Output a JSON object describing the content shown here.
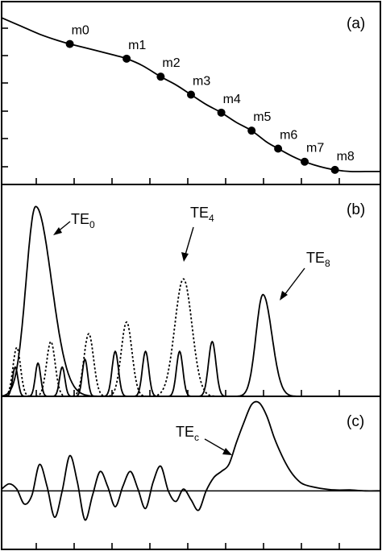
{
  "chart_data": [
    {
      "panel": "a",
      "type": "line",
      "panel_label": "(a)",
      "marker_labels": [
        "m0",
        "m1",
        "m2",
        "m3",
        "m4",
        "m5",
        "m6",
        "m7",
        "m8"
      ],
      "marker_x": [
        0.9,
        1.65,
        2.1,
        2.5,
        2.9,
        3.3,
        3.65,
        4.0,
        4.4
      ],
      "xlim": [
        0,
        5
      ],
      "ylim": [
        0,
        1
      ],
      "x": [
        0,
        0.25,
        0.5,
        0.75,
        0.9,
        1.25,
        1.5,
        1.65,
        1.85,
        2.1,
        2.3,
        2.5,
        2.7,
        2.9,
        3.1,
        3.3,
        3.5,
        3.65,
        3.85,
        4.0,
        4.2,
        4.4,
        4.6,
        4.8,
        5.0
      ],
      "y": [
        0.97,
        0.92,
        0.87,
        0.83,
        0.81,
        0.77,
        0.74,
        0.72,
        0.68,
        0.61,
        0.56,
        0.5,
        0.44,
        0.39,
        0.33,
        0.28,
        0.21,
        0.17,
        0.12,
        0.09,
        0.06,
        0.04,
        0.03,
        0.03,
        0.03
      ],
      "grid": false
    },
    {
      "panel": "b",
      "type": "line",
      "panel_label": "(b)",
      "xlim": [
        0,
        5
      ],
      "ylim": [
        0,
        1
      ],
      "series": [
        {
          "name": "TE0",
          "label_main": "TE",
          "label_sub": "0",
          "style": "solid",
          "peaks": [
            {
              "center": 0.45,
              "height": 0.97,
              "width": 0.18,
              "skew": 0.32
            }
          ]
        },
        {
          "name": "TE4",
          "label_main": "TE",
          "label_sub": "4",
          "style": "dotted",
          "peaks": [
            {
              "center": 0.2,
              "height": 0.25,
              "width": 0.07,
              "skew": 0
            },
            {
              "center": 0.65,
              "height": 0.28,
              "width": 0.08,
              "skew": 0
            },
            {
              "center": 1.15,
              "height": 0.32,
              "width": 0.09,
              "skew": 0
            },
            {
              "center": 1.65,
              "height": 0.38,
              "width": 0.1,
              "skew": 0
            },
            {
              "center": 2.4,
              "height": 0.6,
              "width": 0.16,
              "skew": 0
            }
          ]
        },
        {
          "name": "TE8",
          "label_main": "TE",
          "label_sub": "8",
          "style": "solid",
          "peaks": [
            {
              "center": 0.18,
              "height": 0.15,
              "width": 0.05,
              "skew": 0
            },
            {
              "center": 0.48,
              "height": 0.17,
              "width": 0.05,
              "skew": 0
            },
            {
              "center": 0.8,
              "height": 0.15,
              "width": 0.05,
              "skew": 0
            },
            {
              "center": 1.1,
              "height": 0.19,
              "width": 0.05,
              "skew": 0
            },
            {
              "center": 1.5,
              "height": 0.23,
              "width": 0.06,
              "skew": 0
            },
            {
              "center": 1.9,
              "height": 0.23,
              "width": 0.06,
              "skew": 0
            },
            {
              "center": 2.35,
              "height": 0.23,
              "width": 0.06,
              "skew": 0
            },
            {
              "center": 2.78,
              "height": 0.28,
              "width": 0.07,
              "skew": 0
            },
            {
              "center": 3.45,
              "height": 0.52,
              "width": 0.13,
              "skew": 0.14
            }
          ]
        }
      ],
      "grid": false
    },
    {
      "panel": "c",
      "type": "line",
      "panel_label": "(c)",
      "xlim": [
        0,
        5
      ],
      "ylim": [
        -0.5,
        1
      ],
      "baseline": 0,
      "series": [
        {
          "name": "TEc",
          "label_main": "TE",
          "label_sub": "c",
          "style": "solid",
          "x": [
            0.0,
            0.1,
            0.2,
            0.3,
            0.4,
            0.5,
            0.6,
            0.7,
            0.8,
            0.9,
            1.0,
            1.1,
            1.2,
            1.3,
            1.4,
            1.5,
            1.6,
            1.7,
            1.8,
            1.9,
            2.0,
            2.1,
            2.2,
            2.3,
            2.4,
            2.5,
            2.6,
            2.7,
            2.8,
            2.9,
            3.0,
            3.1,
            3.2,
            3.3,
            3.4,
            3.5,
            3.6,
            3.7,
            3.8,
            3.9,
            4.0,
            4.2,
            4.4,
            4.6,
            4.8,
            5.0
          ],
          "y": [
            0.02,
            0.08,
            0.02,
            -0.15,
            -0.05,
            0.3,
            0.05,
            -0.3,
            0.0,
            0.4,
            0.1,
            -0.33,
            -0.05,
            0.22,
            0.05,
            -0.18,
            0.05,
            0.22,
            0.02,
            -0.2,
            0.1,
            0.28,
            0.0,
            -0.12,
            0.02,
            -0.1,
            -0.22,
            0.0,
            0.15,
            0.22,
            0.3,
            0.55,
            0.78,
            0.98,
            1.0,
            0.85,
            0.6,
            0.4,
            0.24,
            0.13,
            0.07,
            0.03,
            0.01,
            0.01,
            0.0,
            0.0
          ]
        }
      ],
      "grid": false
    }
  ]
}
